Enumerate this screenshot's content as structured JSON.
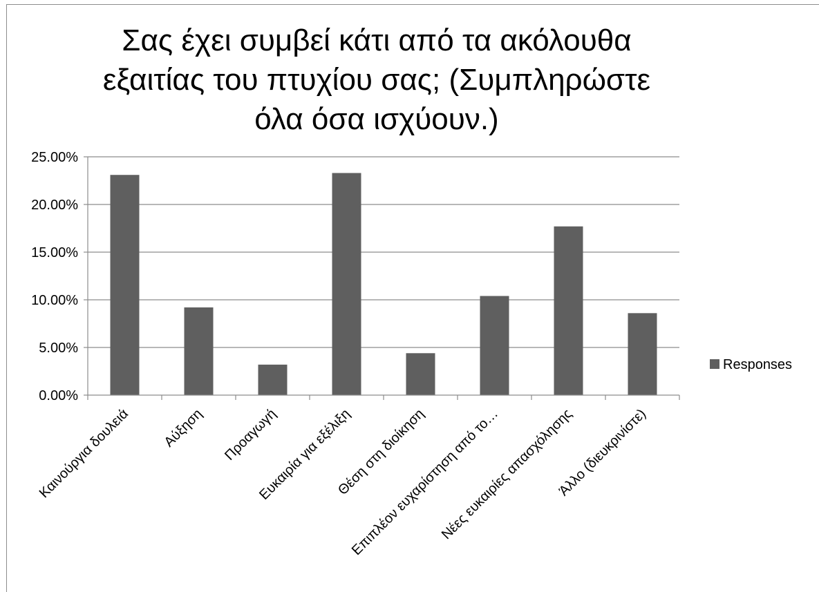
{
  "chart_data": {
    "type": "bar",
    "title_lines": [
      "Σας έχει συμβεί κάτι από τα ακόλουθα",
      "εξαιτίας του πτυχίου σας; (Συμπληρώστε",
      "όλα όσα ισχύουν.)"
    ],
    "categories": [
      "Καινούργια δουλειά",
      "Αύξηση",
      "Προαγωγή",
      "Ευκαιρία για εξέλιξη",
      "Θέση στη διοίκηση",
      "Επιπλέον ευχαρίστηση από το…",
      "Νέες ευκαιρίες απασχόλησης",
      "Άλλο (διευκρινίστε)"
    ],
    "series": [
      {
        "name": "Responses",
        "values": [
          23.1,
          9.2,
          3.2,
          23.3,
          4.4,
          10.4,
          17.7,
          8.6
        ]
      }
    ],
    "y_ticks": [
      "0.00%",
      "5.00%",
      "10.00%",
      "15.00%",
      "20.00%",
      "25.00%"
    ],
    "ylim": [
      0,
      25
    ],
    "grid": true,
    "legend_position": "right",
    "colors": {
      "bar": "#5f5f5f",
      "grid": "#8c8c8c",
      "axis": "#8c8c8c"
    }
  }
}
